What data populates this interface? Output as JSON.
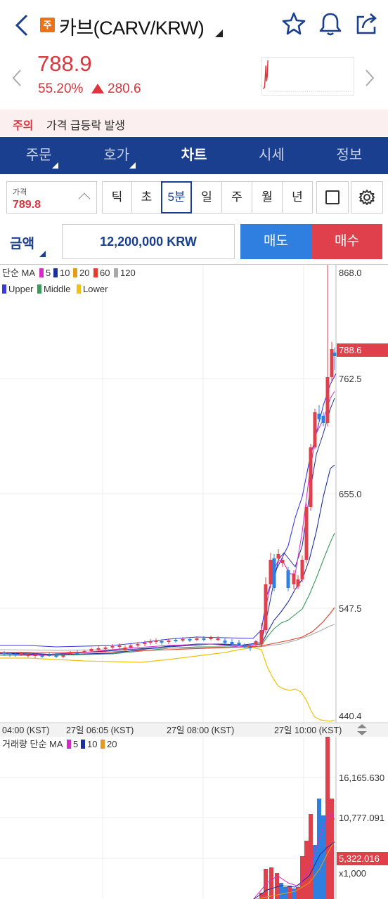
{
  "header": {
    "badge": "주",
    "title": "카브(CARV/KRW)"
  },
  "price": {
    "current": "788.9",
    "change_pct": "55.20%",
    "change_abs": "280.6"
  },
  "alert": {
    "key": "주의",
    "text": "가격 급등락 발생"
  },
  "tabs": [
    {
      "label": "주문",
      "active": false,
      "caret": true
    },
    {
      "label": "호가",
      "active": false,
      "caret": true
    },
    {
      "label": "차트",
      "active": true,
      "caret": false
    },
    {
      "label": "시세",
      "active": false,
      "caret": false
    },
    {
      "label": "정보",
      "active": false,
      "caret": false
    }
  ],
  "controls": {
    "price_label": "가격",
    "price_value": "789.8",
    "periods": [
      "틱",
      "초",
      "5분",
      "일",
      "주",
      "월",
      "년"
    ],
    "active_period": "5분"
  },
  "order": {
    "amount_label": "금액",
    "amount_value": "12,200,000 KRW",
    "sell": "매도",
    "buy": "매수"
  },
  "chart": {
    "ma_title": "단순 MA",
    "ma_legend": [
      {
        "label": "5",
        "color": "#d62bc8"
      },
      {
        "label": "10",
        "color": "#1b2f9e"
      },
      {
        "label": "20",
        "color": "#e69a1a"
      },
      {
        "label": "60",
        "color": "#e33c2a"
      },
      {
        "label": "120",
        "color": "#a8a8a8"
      }
    ],
    "bb_legend": [
      {
        "label": "Upper",
        "color": "#3a3ae0"
      },
      {
        "label": "Middle",
        "color": "#3a9a5a"
      },
      {
        "label": "Lower",
        "color": "#f0c20e"
      }
    ],
    "y_ticks": [
      "868.0",
      "762.5",
      "655.0",
      "547.5",
      "440.4"
    ],
    "current_tag": "788.6",
    "x_ticks": [
      "04:00 (KST)",
      "27일 06:05 (KST)",
      "27일 08:00 (KST)",
      "27일 10:00 (KST)"
    ],
    "vol_title": "거래량 단순 MA",
    "vol_legend": [
      {
        "label": "5",
        "color": "#d62bc8"
      },
      {
        "label": "10",
        "color": "#1b2f9e"
      },
      {
        "label": "20",
        "color": "#e69a1a"
      }
    ],
    "vol_ticks": [
      "16,165.630",
      "10,777.091",
      "x1,000"
    ],
    "vol_tag": "5,322.016",
    "colors": {
      "up": "#e0404b",
      "down": "#2f7fe0"
    }
  }
}
